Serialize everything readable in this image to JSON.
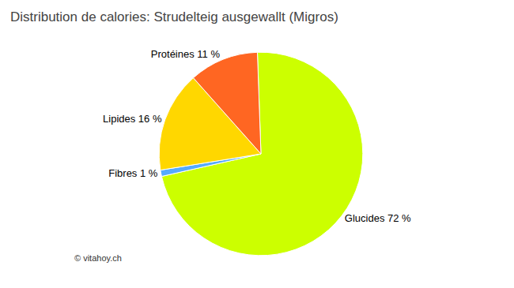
{
  "chart_data": {
    "type": "pie",
    "title": "Distribution de calories: Strudelteig ausgewallt (Migros)",
    "categories": [
      "Glucides 72 %",
      "Fibres 1 %",
      "Lipides 16 %",
      "Protéines 11 %"
    ],
    "values": [
      72,
      1,
      16,
      11
    ],
    "colors": [
      "#CCFF00",
      "#55AAFF",
      "#FFD700",
      "#FF6622"
    ],
    "annotations": [
      "© vitahoy.ch"
    ]
  }
}
